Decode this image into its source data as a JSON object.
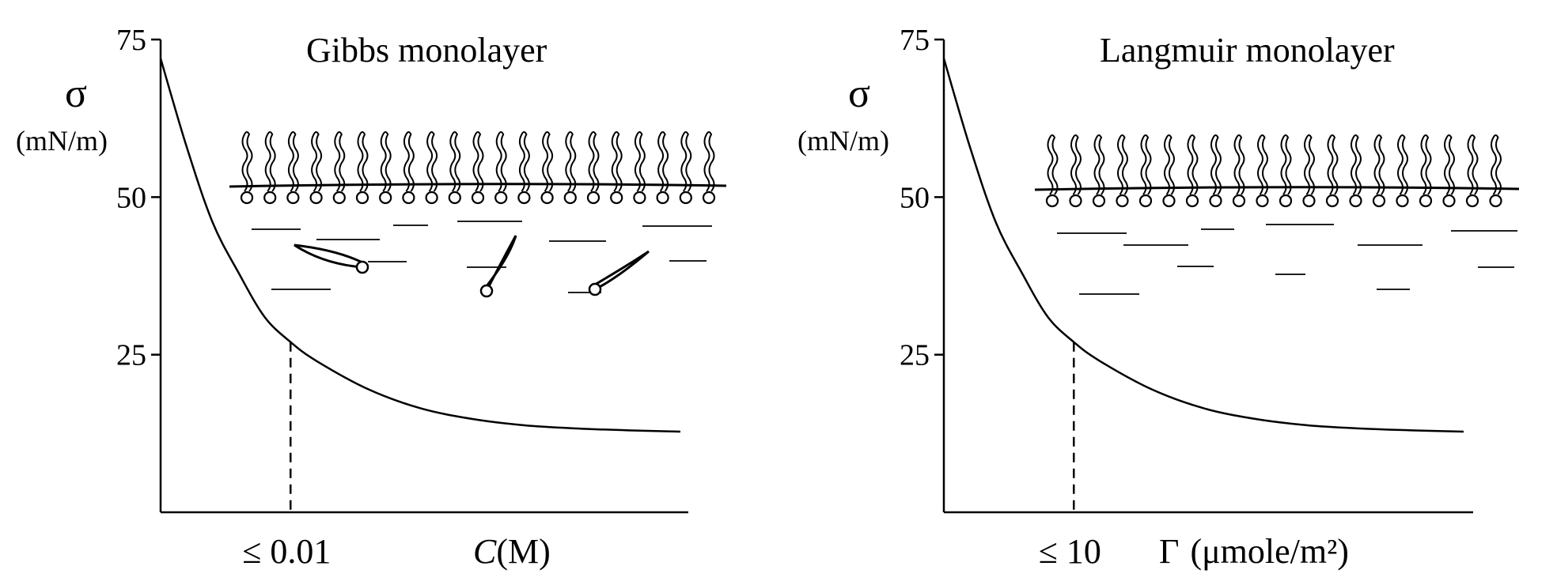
{
  "chart_data": [
    {
      "type": "line",
      "title": "Gibbs monolayer",
      "ylabel": "σ",
      "yunit": "(mN/m)",
      "xlabel_var": "C",
      "xlabel_unit": "(M)",
      "x_marker_label": "≤ 0.01",
      "yticks": [
        "25",
        "50",
        "75"
      ],
      "ylim": [
        0,
        75
      ],
      "xlim": [
        0,
        1
      ],
      "series": [
        {
          "x": [
            0,
            0.05,
            0.1,
            0.15,
            0.2,
            0.25,
            0.3,
            0.4,
            0.5,
            0.6,
            0.7,
            0.8,
            0.9,
            1.0
          ],
          "values": [
            72,
            58,
            46,
            38,
            31,
            27,
            24,
            19.5,
            16.5,
            14.8,
            13.8,
            13.3,
            13.0,
            12.8
          ]
        }
      ],
      "x_marker": 0.25,
      "monolayer": "surface-and-bulk"
    },
    {
      "type": "line",
      "title": "Langmuir monolayer",
      "ylabel": "σ",
      "yunit": "(mN/m)",
      "xlabel_var": "Γ",
      "xlabel_unit": "(μmole/m²)",
      "x_marker_label": "≤ 10",
      "yticks": [
        "25",
        "50",
        "75"
      ],
      "ylim": [
        0,
        75
      ],
      "xlim": [
        0,
        1
      ],
      "series": [
        {
          "x": [
            0,
            0.05,
            0.1,
            0.15,
            0.2,
            0.25,
            0.3,
            0.4,
            0.5,
            0.6,
            0.7,
            0.8,
            0.9,
            1.0
          ],
          "values": [
            72,
            58,
            46,
            38,
            31,
            27,
            24,
            19.5,
            16.5,
            14.8,
            13.8,
            13.3,
            13.0,
            12.8
          ]
        }
      ],
      "x_marker": 0.25,
      "monolayer": "surface-only"
    }
  ]
}
